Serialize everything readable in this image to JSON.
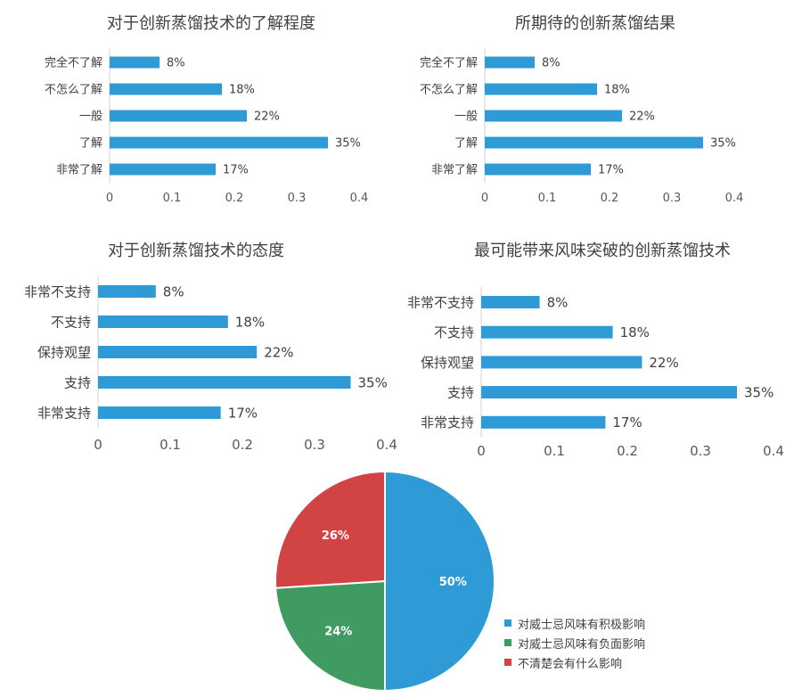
{
  "chart_data": [
    {
      "type": "bar",
      "title": "对于创新蒸馏技术的了解程度",
      "categories": [
        "完全不了解",
        "不怎么了解",
        "一般",
        "了解",
        "非常了解"
      ],
      "values": [
        0.08,
        0.18,
        0.22,
        0.35,
        0.17
      ],
      "data_labels": [
        "8%",
        "18%",
        "22%",
        "35%",
        "17%"
      ],
      "xlim": [
        0,
        0.4
      ],
      "xticks": [
        "0",
        "0.1",
        "0.2",
        "0.3",
        "0.4"
      ],
      "grid": false,
      "color": "#2e9bd6"
    },
    {
      "type": "bar",
      "title": "所期待的创新蒸馏结果",
      "categories": [
        "完全不了解",
        "不怎么了解",
        "一般",
        "了解",
        "非常了解"
      ],
      "values": [
        0.08,
        0.18,
        0.22,
        0.35,
        0.17
      ],
      "data_labels": [
        "8%",
        "18%",
        "22%",
        "35%",
        "17%"
      ],
      "xlim": [
        0,
        0.4
      ],
      "xticks": [
        "0",
        "0.1",
        "0.2",
        "0.3",
        "0.4"
      ],
      "grid": false,
      "color": "#2e9bd6"
    },
    {
      "type": "bar",
      "title": "对于创新蒸馏技术的态度",
      "categories": [
        "非常不支持",
        "不支持",
        "保持观望",
        "支持",
        "非常支持"
      ],
      "values": [
        0.08,
        0.18,
        0.22,
        0.35,
        0.17
      ],
      "data_labels": [
        "8%",
        "18%",
        "22%",
        "35%",
        "17%"
      ],
      "xlim": [
        0,
        0.4
      ],
      "xticks": [
        "0",
        "0.1",
        "0.2",
        "0.3",
        "0.4"
      ],
      "grid": false,
      "color": "#2e9bd6"
    },
    {
      "type": "bar",
      "title": "最可能带来风味突破的创新蒸馏技术",
      "categories": [
        "非常不支持",
        "不支持",
        "保持观望",
        "支持",
        "非常支持"
      ],
      "values": [
        0.08,
        0.18,
        0.22,
        0.35,
        0.17
      ],
      "data_labels": [
        "8%",
        "18%",
        "22%",
        "35%",
        "17%"
      ],
      "xlim": [
        0,
        0.4
      ],
      "xticks": [
        "0",
        "0.1",
        "0.2",
        "0.3",
        "0.4"
      ],
      "grid": false,
      "color": "#2e9bd6"
    },
    {
      "type": "pie",
      "title": "",
      "labels": [
        "对威士忌风味有积极影响",
        "对威士忌风味有负面影响",
        "不清楚会有什么影响"
      ],
      "values": [
        50,
        24,
        26
      ],
      "data_labels": [
        "50%",
        "24%",
        "26%"
      ],
      "colors": [
        "#2e9bd6",
        "#3f9b62",
        "#d24343"
      ],
      "legend": "right"
    }
  ]
}
